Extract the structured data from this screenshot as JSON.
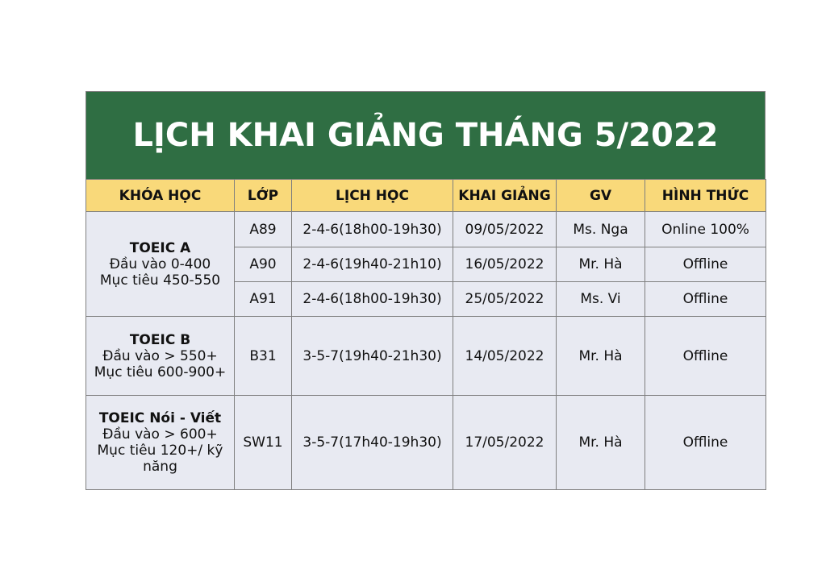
{
  "title": "LỊCH KHAI GIẢNG THÁNG 5/2022",
  "colors": {
    "title_bg": "#2f6e43",
    "header_bg": "#f9d97a",
    "cell_bg": "#e8eaf2"
  },
  "headers": [
    "KHÓA HỌC",
    "LỚP",
    "LỊCH HỌC",
    "KHAI GIẢNG",
    "GV",
    "HÌNH THỨC"
  ],
  "courses": [
    {
      "name": "TOEIC A",
      "input": "Đầu vào 0-400",
      "target": "Mục tiêu 450-550",
      "classes": [
        {
          "class": "A89",
          "schedule": "2-4-6(18h00-19h30)",
          "start": "09/05/2022",
          "teacher": "Ms. Nga",
          "format": "Online 100%"
        },
        {
          "class": "A90",
          "schedule": "2-4-6(19h40-21h10)",
          "start": "16/05/2022",
          "teacher": "Mr. Hà",
          "format": "Offline"
        },
        {
          "class": "A91",
          "schedule": "2-4-6(18h00-19h30)",
          "start": "25/05/2022",
          "teacher": "Ms. Vi",
          "format": "Offline"
        }
      ]
    },
    {
      "name": "TOEIC B",
      "input": "Đầu vào > 550+",
      "target": "Mục tiêu 600-900+",
      "classes": [
        {
          "class": "B31",
          "schedule": "3-5-7(19h40-21h30)",
          "start": "14/05/2022",
          "teacher": "Mr. Hà",
          "format": "Offline"
        }
      ]
    },
    {
      "name": "TOEIC Nói - Viết",
      "input": "Đầu vào > 600+",
      "target": "Mục tiêu 120+/ kỹ năng",
      "classes": [
        {
          "class": "SW11",
          "schedule": "3-5-7(17h40-19h30)",
          "start": "17/05/2022",
          "teacher": "Mr. Hà",
          "format": "Offline"
        }
      ]
    }
  ]
}
